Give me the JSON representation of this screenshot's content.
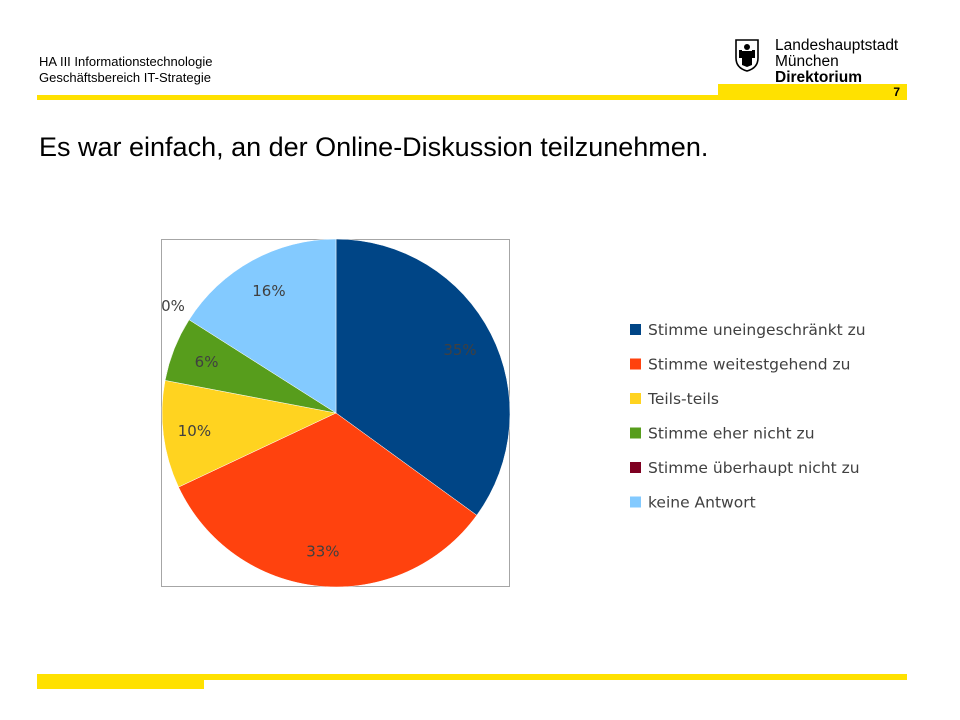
{
  "header": {
    "org_line1": "HA III Informationstechnologie",
    "org_line2": "Geschäftsbereich IT-Strategie",
    "logo_line1": "Landeshauptstadt",
    "logo_line2": "München",
    "logo_line3": "Direktorium",
    "page_number": "7"
  },
  "slide": {
    "title": "Es war einfach, an der Online-Diskussion teilzunehmen."
  },
  "colors": {
    "accent_yellow": "#FFE100",
    "seal_black": "#000000"
  },
  "chart_data": {
    "type": "pie",
    "labels": [
      "Stimme uneingeschränkt zu",
      "Stimme weitestgehend zu",
      "Teils-teils",
      "Stimme eher nicht zu",
      "Stimme überhaupt nicht zu",
      "keine Antwort"
    ],
    "values": [
      35,
      33,
      10,
      6,
      0,
      16
    ],
    "data_labels": [
      "35%",
      "33%",
      "10%",
      "6%",
      "0%",
      "16%"
    ],
    "colors": [
      "#004586",
      "#FF420E",
      "#FFD320",
      "#579D1C",
      "#7E0021",
      "#83CAFF"
    ],
    "legend_position": "right"
  }
}
